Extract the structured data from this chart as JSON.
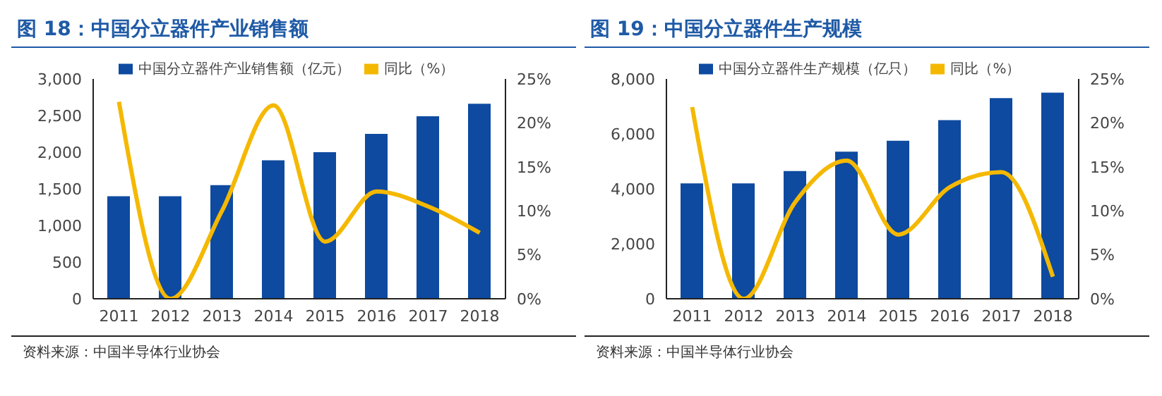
{
  "chart_data": [
    {
      "type": "bar",
      "title": "图 18：中国分立器件产业销售额",
      "categories": [
        "2011",
        "2012",
        "2013",
        "2014",
        "2015",
        "2016",
        "2017",
        "2018"
      ],
      "series": [
        {
          "name": "中国分立器件产业销售额（亿元）",
          "color": "#0d4aa0",
          "values": [
            1400,
            1400,
            1550,
            1890,
            2000,
            2250,
            2490,
            2660
          ]
        },
        {
          "name": "同比（%）",
          "type": "line",
          "axis": "y2",
          "color": "#f5b800",
          "values": [
            22.4,
            0,
            10,
            22,
            6.5,
            12.2,
            10.5,
            7.5
          ]
        }
      ],
      "ylim": [
        0,
        3000
      ],
      "yticks": [
        0,
        {
          "value": 500,
          "label": "500"
        },
        {
          "value": 1000,
          "label": "1,000"
        },
        {
          "value": 1500,
          "label": "1,500"
        },
        {
          "value": 2000,
          "label": "2,000"
        },
        {
          "value": 2500,
          "label": "2,500"
        },
        {
          "value": 3000,
          "label": "3,000"
        }
      ],
      "y2lim": [
        0,
        25
      ],
      "y2ticks": [
        {
          "value": 0,
          "label": "0%"
        },
        {
          "value": 5,
          "label": "5%"
        },
        {
          "value": 10,
          "label": "10%"
        },
        {
          "value": 15,
          "label": "15%"
        },
        {
          "value": 20,
          "label": "20%"
        },
        {
          "value": 25,
          "label": "25%"
        }
      ],
      "legend": "top",
      "grid": false,
      "marker": "none",
      "line_style": "solid",
      "annotations": [
        "资料来源：中国半导体行业协会"
      ]
    },
    {
      "type": "bar",
      "title": "图 19：中国分立器件生产规模",
      "categories": [
        "2011",
        "2012",
        "2013",
        "2014",
        "2015",
        "2016",
        "2017",
        "2018"
      ],
      "series": [
        {
          "name": "中国分立器件生产规模（亿只）",
          "color": "#0d4aa0",
          "values": [
            4200,
            4200,
            4650,
            5350,
            5750,
            6500,
            7300,
            7500
          ]
        },
        {
          "name": "同比（%）",
          "type": "line",
          "axis": "y2",
          "color": "#f5b800",
          "values": [
            21.8,
            0,
            11,
            15.7,
            7.3,
            12.7,
            14.4,
            2.5
          ]
        }
      ],
      "ylim": [
        0,
        8000
      ],
      "yticks": [
        0,
        {
          "value": 2000,
          "label": "2,000"
        },
        {
          "value": 4000,
          "label": "4,000"
        },
        {
          "value": 6000,
          "label": "6,000"
        },
        {
          "value": 8000,
          "label": "8,000"
        }
      ],
      "y2lim": [
        0,
        25
      ],
      "y2ticks": [
        {
          "value": 0,
          "label": "0%"
        },
        {
          "value": 5,
          "label": "5%"
        },
        {
          "value": 10,
          "label": "10%"
        },
        {
          "value": 15,
          "label": "15%"
        },
        {
          "value": 20,
          "label": "20%"
        },
        {
          "value": 25,
          "label": "25%"
        }
      ],
      "legend": "top",
      "grid": false,
      "marker": "none",
      "line_style": "solid",
      "annotations": [
        "资料来源：中国半导体行业协会"
      ]
    }
  ]
}
